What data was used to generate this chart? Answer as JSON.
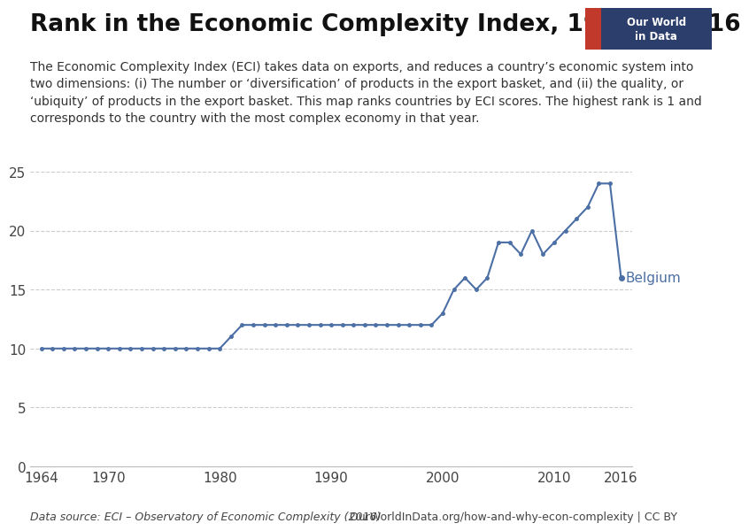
{
  "title": "Rank in the Economic Complexity Index, 1964 to 2016",
  "subtitle": "The Economic Complexity Index (ECI) takes data on exports, and reduces a country’s economic system into\ntwo dimensions: (i) The number or ‘diversification’ of products in the export basket, and (ii) the quality, or\n‘ubiquity’ of products in the export basket. This map ranks countries by ECI scores. The highest rank is 1 and\ncorresponds to the country with the most complex economy in that year.",
  "footnote_left": "Data source: ECI – Observatory of Economic Complexity (2016)",
  "footnote_right": "OurWorldInData.org/how-and-why-econ-complexity | CC BY",
  "line_color": "#4c6fa5",
  "background_color": "#ffffff",
  "label": "Belgium",
  "years": [
    1964,
    1965,
    1966,
    1967,
    1968,
    1969,
    1970,
    1971,
    1972,
    1973,
    1974,
    1975,
    1976,
    1977,
    1978,
    1979,
    1980,
    1981,
    1982,
    1983,
    1984,
    1985,
    1986,
    1987,
    1988,
    1989,
    1990,
    1991,
    1992,
    1993,
    1994,
    1995,
    1996,
    1997,
    1998,
    1999,
    2000,
    2001,
    2002,
    2003,
    2004,
    2005,
    2006,
    2007,
    2008,
    2009,
    2010,
    2011,
    2012,
    2013,
    2014,
    2015,
    2016
  ],
  "values": [
    10,
    10,
    10,
    10,
    10,
    10,
    10,
    10,
    10,
    10,
    10,
    10,
    10,
    10,
    10,
    10,
    10,
    11,
    12,
    12,
    12,
    12,
    12,
    12,
    12,
    12,
    12,
    12,
    12,
    12,
    12,
    12,
    12,
    12,
    12,
    12,
    13,
    15,
    16,
    15,
    16,
    19,
    19,
    18,
    20,
    18,
    19,
    20,
    21,
    22,
    24,
    24,
    16
  ],
  "ylim": [
    0,
    25
  ],
  "yticks": [
    0,
    5,
    10,
    15,
    20,
    25
  ],
  "xlim": [
    1963,
    2017
  ],
  "xticks": [
    1964,
    1970,
    1980,
    1990,
    2000,
    2010,
    2016
  ],
  "grid_color": "#cccccc",
  "owid_box_color": "#c0392b",
  "owid_box_bg": "#2c3e6b",
  "title_fontsize": 19,
  "subtitle_fontsize": 10,
  "label_fontsize": 11,
  "tick_fontsize": 11,
  "footnote_fontsize": 9
}
